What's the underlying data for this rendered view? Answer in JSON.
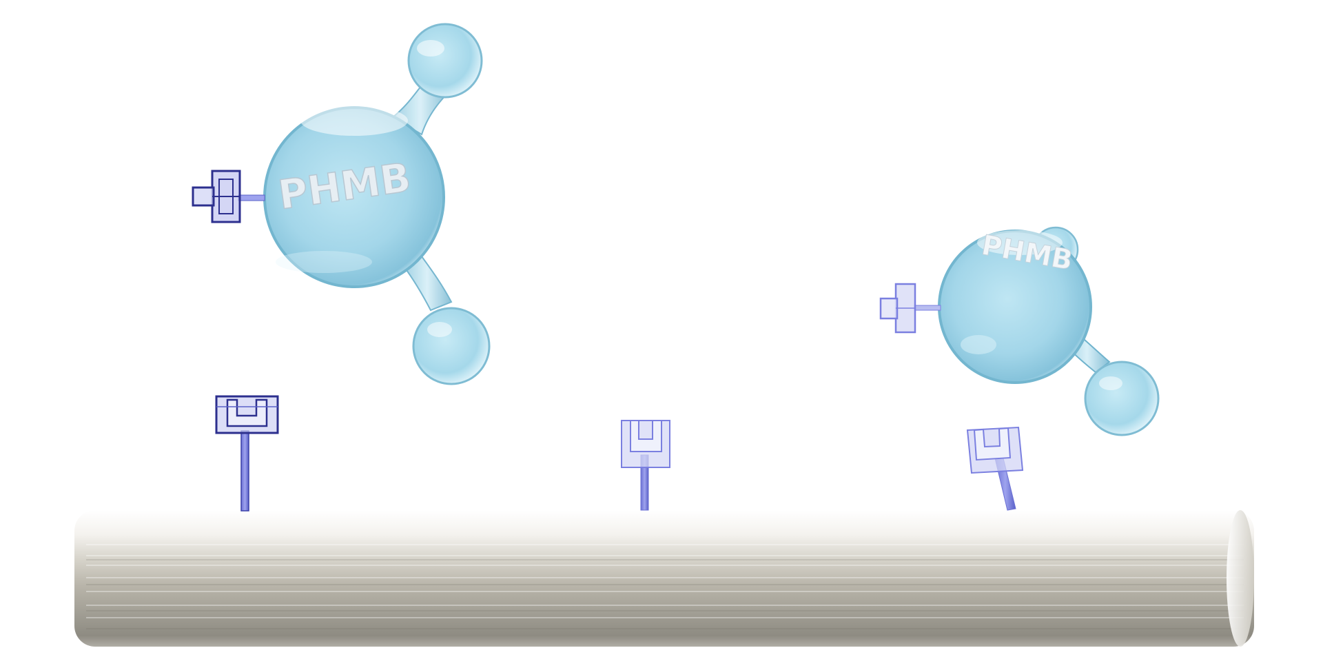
{
  "molecules": [
    {
      "id": "large",
      "label": "PHMB"
    },
    {
      "id": "small",
      "label": "PHMB"
    }
  ],
  "colors": {
    "background": "#ffffff",
    "sphere_fill": "#a6d8ea",
    "sphere_rim": "#5aa9c6",
    "sphere_highlight": "#e9f7fc",
    "linker": "#5960c8",
    "linker_dark": "#2c2f8e",
    "linker_light": "#b8bdf0",
    "fiber_light": "#f3f1ed",
    "fiber_mid": "#c4c0b4",
    "fiber_dark": "#8c897f",
    "label_text": "#e4eef4"
  },
  "icons": {
    "molecule": "phmb-molecule-icon",
    "receptor": "receptor-socket-icon",
    "anchor": "molecule-anchor-icon",
    "fiber": "fiber-cylinder-icon"
  }
}
